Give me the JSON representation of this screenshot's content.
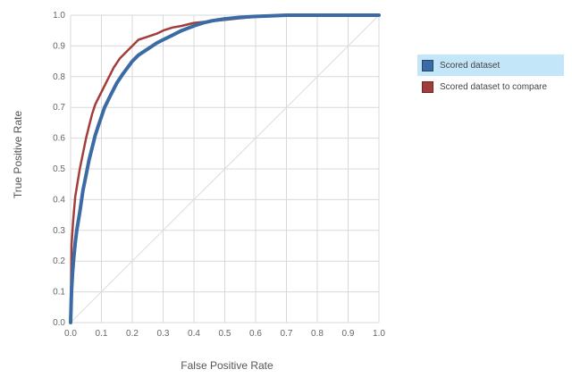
{
  "chart_data": {
    "type": "line",
    "title": "",
    "xlabel": "False Positive Rate",
    "ylabel": "True Positive Rate",
    "xlim": [
      0.0,
      1.0
    ],
    "ylim": [
      0.0,
      1.0
    ],
    "xticks": [
      "0.0",
      "0.1",
      "0.2",
      "0.3",
      "0.4",
      "0.5",
      "0.6",
      "0.7",
      "0.8",
      "0.9",
      "1.0"
    ],
    "yticks": [
      "0.0",
      "0.1",
      "0.2",
      "0.3",
      "0.4",
      "0.5",
      "0.6",
      "0.7",
      "0.8",
      "0.9",
      "1.0"
    ],
    "grid": true,
    "legend_position": "right",
    "diagonal_reference": true,
    "series": [
      {
        "name": "Scored dataset to compare",
        "color": "#a13e3c",
        "x": [
          0.0,
          0.003,
          0.008,
          0.015,
          0.02,
          0.03,
          0.04,
          0.05,
          0.06,
          0.07,
          0.08,
          0.09,
          0.1,
          0.12,
          0.14,
          0.16,
          0.18,
          0.2,
          0.22,
          0.25,
          0.28,
          0.3,
          0.33,
          0.36,
          0.4,
          0.45,
          0.5,
          0.55,
          0.6,
          0.65,
          0.7,
          0.8,
          0.9,
          1.0
        ],
        "y": [
          0.0,
          0.25,
          0.33,
          0.41,
          0.44,
          0.5,
          0.55,
          0.6,
          0.64,
          0.68,
          0.71,
          0.73,
          0.75,
          0.79,
          0.83,
          0.86,
          0.88,
          0.9,
          0.92,
          0.93,
          0.94,
          0.95,
          0.96,
          0.965,
          0.975,
          0.98,
          0.985,
          0.99,
          0.995,
          0.997,
          0.999,
          1.0,
          1.0,
          1.0
        ]
      },
      {
        "name": "Scored dataset",
        "color": "#3b6ba5",
        "x": [
          0.0,
          0.003,
          0.006,
          0.01,
          0.015,
          0.02,
          0.025,
          0.03,
          0.04,
          0.05,
          0.06,
          0.07,
          0.08,
          0.09,
          0.1,
          0.11,
          0.13,
          0.15,
          0.17,
          0.2,
          0.22,
          0.25,
          0.28,
          0.3,
          0.33,
          0.36,
          0.4,
          0.43,
          0.46,
          0.5,
          0.55,
          0.6,
          0.65,
          0.7,
          0.8,
          0.9,
          1.0
        ],
        "y": [
          0.0,
          0.1,
          0.16,
          0.21,
          0.26,
          0.3,
          0.33,
          0.36,
          0.43,
          0.48,
          0.53,
          0.57,
          0.61,
          0.64,
          0.67,
          0.7,
          0.74,
          0.78,
          0.81,
          0.85,
          0.87,
          0.89,
          0.91,
          0.92,
          0.935,
          0.95,
          0.965,
          0.975,
          0.982,
          0.988,
          0.993,
          0.996,
          0.998,
          1.0,
          1.0,
          1.0,
          1.0
        ]
      }
    ]
  },
  "legend": {
    "items": [
      {
        "label": "Scored dataset",
        "color": "#3b6ba5",
        "selected": true
      },
      {
        "label": "Scored dataset to compare",
        "color": "#a13e3c",
        "selected": false
      }
    ]
  },
  "colors": {
    "grid": "#d9d9d9",
    "diagonal": "#dddddd",
    "selected_legend_bg": "#c3e6f9"
  }
}
